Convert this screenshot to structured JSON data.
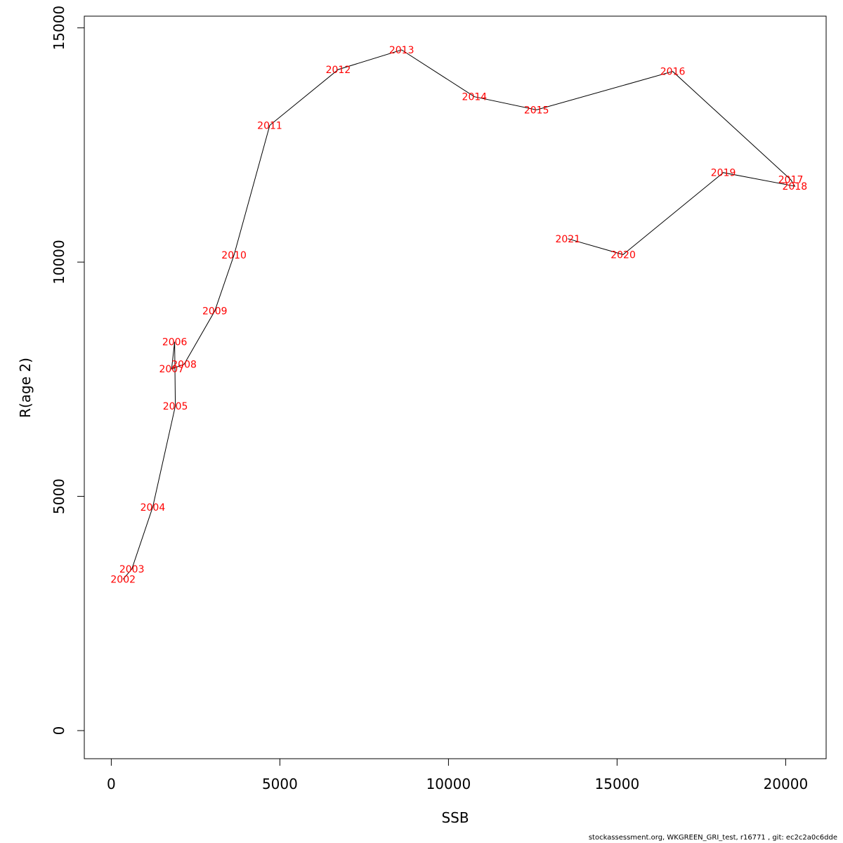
{
  "chart_data": {
    "type": "line",
    "title": "",
    "xlabel": "SSB",
    "ylabel": "R(age 2)",
    "xlim": [
      -800,
      21200
    ],
    "ylim": [
      -600,
      15250
    ],
    "x_ticks": [
      0,
      5000,
      10000,
      15000,
      20000
    ],
    "y_ticks": [
      0,
      5000,
      10000,
      15000
    ],
    "x_tick_labels": [
      "0",
      "5000",
      "10000",
      "15000",
      "20000"
    ],
    "y_tick_labels": [
      "0",
      "5000",
      "10000",
      "15000"
    ],
    "grid": false,
    "line_color": "#000000",
    "label_color": "#ff0000",
    "points": [
      {
        "year": "2002",
        "ssb": 350,
        "r": 3230
      },
      {
        "year": "2003",
        "ssb": 610,
        "r": 3450
      },
      {
        "year": "2004",
        "ssb": 1230,
        "r": 4770
      },
      {
        "year": "2005",
        "ssb": 1900,
        "r": 6930
      },
      {
        "year": "2006",
        "ssb": 1880,
        "r": 8300
      },
      {
        "year": "2007",
        "ssb": 1790,
        "r": 7720
      },
      {
        "year": "2008",
        "ssb": 2160,
        "r": 7820
      },
      {
        "year": "2009",
        "ssb": 3070,
        "r": 8960
      },
      {
        "year": "2010",
        "ssb": 3640,
        "r": 10150
      },
      {
        "year": "2011",
        "ssb": 4700,
        "r": 12920
      },
      {
        "year": "2012",
        "ssb": 6730,
        "r": 14110
      },
      {
        "year": "2013",
        "ssb": 8610,
        "r": 14530
      },
      {
        "year": "2014",
        "ssb": 10770,
        "r": 13530
      },
      {
        "year": "2015",
        "ssb": 12610,
        "r": 13250
      },
      {
        "year": "2016",
        "ssb": 16650,
        "r": 14070
      },
      {
        "year": "2017",
        "ssb": 20150,
        "r": 11760
      },
      {
        "year": "2018",
        "ssb": 20270,
        "r": 11620
      },
      {
        "year": "2019",
        "ssb": 18150,
        "r": 11910
      },
      {
        "year": "2020",
        "ssb": 15180,
        "r": 10160
      },
      {
        "year": "2021",
        "ssb": 13540,
        "r": 10500
      }
    ]
  },
  "footer": "stockassessment.org, WKGREEN_GRI_test, r16771 , git: ec2c2a0c6dde"
}
